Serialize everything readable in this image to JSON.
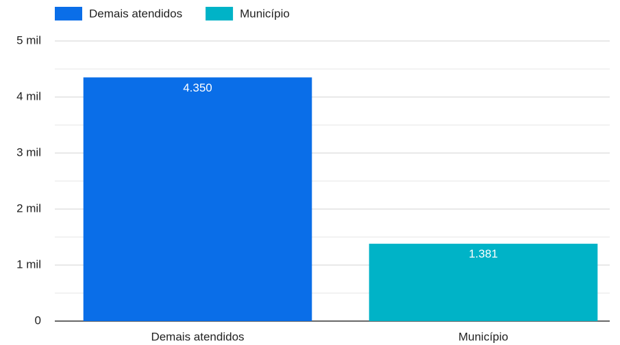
{
  "chart_data": {
    "type": "bar",
    "categories": [
      "Demais atendidos",
      "Município"
    ],
    "values": [
      4350,
      1381
    ],
    "value_labels": [
      "4.350",
      "1.381"
    ],
    "colors": [
      "#0a6ee8",
      "#00b3c7"
    ],
    "ylim": [
      0,
      5000
    ],
    "yticks": [
      0,
      {
        "value": 1000,
        "label": "1 mil"
      },
      {
        "value": 2000,
        "label": "2 mil"
      },
      {
        "value": 3000,
        "label": "3 mil"
      },
      {
        "value": 4000,
        "label": "4 mil"
      },
      {
        "value": 5000,
        "label": "5 mil"
      }
    ],
    "minor_yticks": [
      500,
      1500,
      2500,
      3500,
      4500
    ],
    "grid": true,
    "legend": "top-left"
  }
}
